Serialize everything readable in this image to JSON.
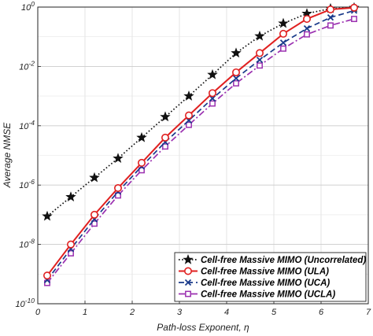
{
  "chart_data": {
    "type": "line",
    "xlabel": "Path-loss Exponent, η",
    "ylabel": "Average NMSE",
    "xlim": [
      0,
      7
    ],
    "ylim_log10": [
      -10,
      0
    ],
    "y_scale": "log",
    "grid": true,
    "legend_position": "bottom-right",
    "x_ticks": [
      {
        "value": 0,
        "label": "0"
      },
      {
        "value": 1,
        "label": "1"
      },
      {
        "value": 2,
        "label": "2"
      },
      {
        "value": 3,
        "label": "3"
      },
      {
        "value": 4,
        "label": "4"
      },
      {
        "value": 5,
        "label": "5"
      },
      {
        "value": 6,
        "label": "6"
      },
      {
        "value": 7,
        "label": "7"
      }
    ],
    "y_ticks": [
      {
        "value": 0,
        "base": "10",
        "exp": "0"
      },
      {
        "value": -2,
        "base": "10",
        "exp": "-2"
      },
      {
        "value": -4,
        "base": "10",
        "exp": "-4"
      },
      {
        "value": -6,
        "base": "10",
        "exp": "-6"
      },
      {
        "value": -8,
        "base": "10",
        "exp": "-8"
      },
      {
        "value": -10,
        "base": "10",
        "exp": "-10"
      }
    ],
    "x": [
      0.2,
      0.7,
      1.2,
      1.7,
      2.2,
      2.7,
      3.2,
      3.7,
      4.2,
      4.7,
      5.2,
      5.7,
      6.2,
      6.7
    ],
    "series": [
      {
        "name": "Cell-free Massive MIMO (Uncorrelated)",
        "color": "#111111",
        "line": "dotted",
        "marker": "star",
        "log10_values": [
          -7.05,
          -6.4,
          -5.75,
          -5.1,
          -4.4,
          -3.7,
          -3.0,
          -2.28,
          -1.55,
          -0.98,
          -0.55,
          -0.22,
          -0.05,
          -0.02
        ]
      },
      {
        "name": "Cell-free Massive MIMO (ULA)",
        "color": "#e02020",
        "line": "solid",
        "marker": "circle",
        "log10_values": [
          -9.05,
          -8.0,
          -7.0,
          -6.1,
          -5.25,
          -4.4,
          -3.65,
          -2.9,
          -2.2,
          -1.55,
          -0.9,
          -0.4,
          -0.08,
          -0.02
        ]
      },
      {
        "name": "Cell-free Massive MIMO (UCA)",
        "color": "#1a3a8a",
        "line": "dashed",
        "marker": "x",
        "log10_values": [
          -9.2,
          -8.15,
          -7.15,
          -6.22,
          -5.37,
          -4.55,
          -3.82,
          -3.08,
          -2.4,
          -1.78,
          -1.2,
          -0.72,
          -0.35,
          -0.12
        ]
      },
      {
        "name": "Cell-free Massive MIMO (UCLA)",
        "color": "#9b30b0",
        "line": "dashdot",
        "marker": "square",
        "log10_values": [
          -9.3,
          -8.3,
          -7.3,
          -6.35,
          -5.5,
          -4.7,
          -3.97,
          -3.25,
          -2.57,
          -1.97,
          -1.4,
          -0.92,
          -0.62,
          -0.4
        ]
      }
    ]
  }
}
